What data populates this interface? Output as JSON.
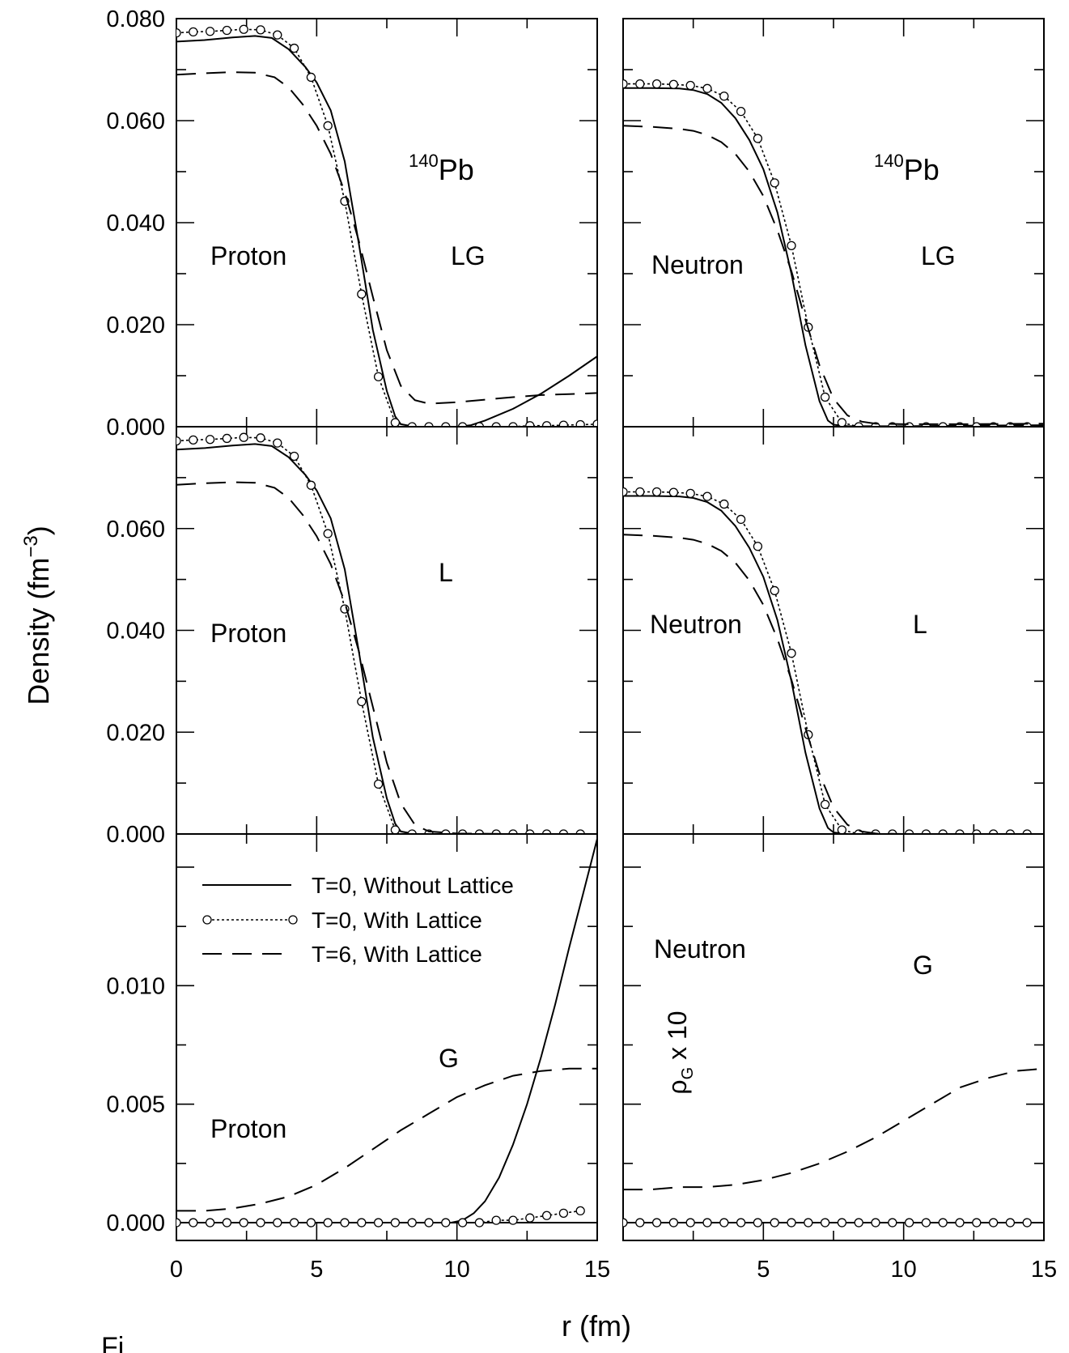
{
  "figure": {
    "xlabel": "r (fm)",
    "ylabel": "Density (fm",
    "ylabel_exp": "−3",
    "ylabel_close": ")",
    "caption_fragment": "Fi"
  },
  "legend": [
    {
      "label": "T=0, Without Lattice",
      "style": "solid"
    },
    {
      "label": "T=0, With Lattice",
      "style": "dotted-circles"
    },
    {
      "label": "T=6, With Lattice",
      "style": "dashed"
    }
  ],
  "colors": {
    "ink": "#000000",
    "background": "#ffffff"
  },
  "chart_data": [
    {
      "type": "line",
      "panel": "top-left",
      "nucleus_mass": "140",
      "nucleus_symbol": "Pb",
      "species": "Proton",
      "component": "LG",
      "xlim": [
        0,
        15
      ],
      "ylim": [
        0,
        0.08
      ],
      "yticks": [
        "0.000",
        "0.020",
        "0.040",
        "0.060",
        "0.080"
      ],
      "xticks": [],
      "series": [
        {
          "style": "solid",
          "x": [
            0,
            1,
            2,
            2.8,
            3.4,
            4,
            4.6,
            5,
            5.5,
            6,
            6.5,
            7,
            7.5,
            7.8,
            8,
            8.5,
            9,
            9.5,
            10,
            10.5,
            11,
            12,
            13,
            14,
            15
          ],
          "y": [
            0.0755,
            0.0758,
            0.0763,
            0.0766,
            0.0762,
            0.074,
            0.0705,
            0.0675,
            0.062,
            0.052,
            0.036,
            0.019,
            0.007,
            0.002,
            0.0005,
            0.0,
            0.0,
            0.0,
            0.0,
            0.0003,
            0.0012,
            0.0035,
            0.0065,
            0.01,
            0.0138
          ]
        },
        {
          "style": "dotted-circles",
          "x": [
            0,
            0.6,
            1.2,
            1.8,
            2.4,
            3.0,
            3.6,
            4.2,
            4.8,
            5.4,
            6.0,
            6.6,
            7.2,
            7.8,
            8.4,
            9.0,
            9.6,
            10.2,
            10.8,
            11.4,
            12.0,
            12.6,
            13.2,
            13.8,
            14.4,
            15
          ],
          "y": [
            0.0772,
            0.0774,
            0.0775,
            0.0777,
            0.0779,
            0.0778,
            0.0768,
            0.0742,
            0.0685,
            0.059,
            0.0442,
            0.026,
            0.0098,
            0.0008,
            0.0,
            0.0,
            0.0,
            0.0,
            0.0,
            0.0,
            0.0,
            0.0002,
            0.0002,
            0.0003,
            0.0004,
            0.0005
          ]
        },
        {
          "style": "dashed",
          "x": [
            0,
            1,
            2,
            2.8,
            3.5,
            4,
            4.5,
            5,
            5.5,
            6,
            6.5,
            7,
            7.5,
            8,
            8.5,
            9,
            10,
            11,
            12,
            13,
            14,
            15
          ],
          "y": [
            0.069,
            0.0693,
            0.0695,
            0.0694,
            0.0685,
            0.0665,
            0.0632,
            0.059,
            0.0535,
            0.046,
            0.0365,
            0.0255,
            0.015,
            0.008,
            0.0052,
            0.0045,
            0.0048,
            0.0053,
            0.0058,
            0.0062,
            0.0064,
            0.0066
          ]
        }
      ]
    },
    {
      "type": "line",
      "panel": "top-right",
      "nucleus_mass": "140",
      "nucleus_symbol": "Pb",
      "species": "Neutron",
      "component": "LG",
      "xlim": [
        0,
        15
      ],
      "ylim": [
        0,
        0.08
      ],
      "yticks": [],
      "xticks": [],
      "series": [
        {
          "style": "solid",
          "x": [
            0,
            1,
            2,
            2.5,
            3,
            3.5,
            4,
            4.5,
            5,
            5.5,
            6,
            6.5,
            7,
            7.3,
            7.5,
            8,
            9,
            10,
            12,
            15
          ],
          "y": [
            0.0664,
            0.0664,
            0.0663,
            0.066,
            0.0652,
            0.0635,
            0.0605,
            0.0562,
            0.0505,
            0.042,
            0.03,
            0.016,
            0.005,
            0.0012,
            0.0004,
            0.0001,
            0.0001,
            0.0001,
            0.0002,
            0.0003
          ]
        },
        {
          "style": "dotted-circles",
          "x": [
            0,
            0.6,
            1.2,
            1.8,
            2.4,
            3.0,
            3.6,
            4.2,
            4.8,
            5.4,
            6.0,
            6.6,
            7.2,
            7.8,
            8.4,
            9.0,
            9.6,
            10.2,
            10.8,
            11.4,
            12.0,
            12.6,
            13.2,
            13.8,
            14.4
          ],
          "y": [
            0.0672,
            0.0672,
            0.0672,
            0.0671,
            0.0669,
            0.0663,
            0.0648,
            0.0618,
            0.0565,
            0.0478,
            0.0355,
            0.0195,
            0.0058,
            0.0008,
            0.0,
            0.0,
            0.0,
            0.0,
            0.0,
            0.0,
            0.0,
            0.0,
            0.0,
            0.0,
            0.0
          ]
        },
        {
          "style": "dashed",
          "x": [
            0,
            1,
            2,
            2.5,
            3,
            3.5,
            4,
            4.5,
            5,
            5.5,
            6,
            6.5,
            7,
            7.5,
            8,
            8.5,
            9,
            10,
            12,
            15
          ],
          "y": [
            0.059,
            0.0588,
            0.0584,
            0.058,
            0.0572,
            0.0558,
            0.0535,
            0.05,
            0.0452,
            0.0385,
            0.0305,
            0.021,
            0.012,
            0.0055,
            0.0022,
            0.001,
            0.0006,
            0.0005,
            0.0005,
            0.0006
          ]
        }
      ]
    },
    {
      "type": "line",
      "panel": "middle-left",
      "species": "Proton",
      "component": "L",
      "xlim": [
        0,
        15
      ],
      "ylim": [
        0,
        0.08
      ],
      "yticks": [
        "0.000",
        "0.020",
        "0.040",
        "0.060"
      ],
      "xticks": [],
      "series": [
        {
          "style": "solid",
          "x": [
            0,
            1,
            2,
            2.8,
            3.4,
            4,
            4.6,
            5,
            5.5,
            6,
            6.5,
            7,
            7.5,
            7.8,
            8,
            8.5,
            9,
            10,
            12,
            15
          ],
          "y": [
            0.0755,
            0.0758,
            0.0763,
            0.0766,
            0.0762,
            0.074,
            0.0705,
            0.0675,
            0.062,
            0.052,
            0.036,
            0.019,
            0.007,
            0.002,
            0.0005,
            0.0,
            0.0,
            0.0,
            0.0,
            0.0
          ]
        },
        {
          "style": "dotted-circles",
          "x": [
            0,
            0.6,
            1.2,
            1.8,
            2.4,
            3.0,
            3.6,
            4.2,
            4.8,
            5.4,
            6.0,
            6.6,
            7.2,
            7.8,
            8.4,
            9.0,
            9.6,
            10.2,
            10.8,
            11.4,
            12.0,
            12.6,
            13.2,
            13.8,
            14.4
          ],
          "y": [
            0.0772,
            0.0774,
            0.0775,
            0.0777,
            0.0779,
            0.0778,
            0.0768,
            0.0742,
            0.0685,
            0.059,
            0.0442,
            0.026,
            0.0098,
            0.0008,
            0.0,
            0.0,
            0.0,
            0.0,
            0.0,
            0.0,
            0.0,
            0.0,
            0.0,
            0.0,
            0.0
          ]
        },
        {
          "style": "dashed",
          "x": [
            0,
            1,
            2,
            2.8,
            3.5,
            4,
            4.5,
            5,
            5.5,
            6,
            6.5,
            7,
            7.5,
            8,
            8.5,
            9,
            10,
            12,
            15
          ],
          "y": [
            0.0686,
            0.0689,
            0.0691,
            0.069,
            0.068,
            0.066,
            0.0627,
            0.0585,
            0.053,
            0.0455,
            0.036,
            0.025,
            0.014,
            0.006,
            0.0018,
            0.0005,
            0.0001,
            0.0,
            0.0
          ]
        }
      ]
    },
    {
      "type": "line",
      "panel": "middle-right",
      "species": "Neutron",
      "component": "L",
      "xlim": [
        0,
        15
      ],
      "ylim": [
        0,
        0.08
      ],
      "yticks": [],
      "xticks": [],
      "series": [
        {
          "style": "solid",
          "x": [
            0,
            1,
            2,
            2.5,
            3,
            3.5,
            4,
            4.5,
            5,
            5.5,
            6,
            6.5,
            7,
            7.3,
            7.5,
            8,
            9,
            15
          ],
          "y": [
            0.0664,
            0.0664,
            0.0663,
            0.066,
            0.0652,
            0.0635,
            0.0605,
            0.0562,
            0.0505,
            0.042,
            0.03,
            0.016,
            0.005,
            0.0012,
            0.0003,
            0.0,
            0.0,
            0.0
          ]
        },
        {
          "style": "dotted-circles",
          "x": [
            0,
            0.6,
            1.2,
            1.8,
            2.4,
            3.0,
            3.6,
            4.2,
            4.8,
            5.4,
            6.0,
            6.6,
            7.2,
            7.8,
            8.4,
            9.0,
            9.6,
            10.2,
            10.8,
            11.4,
            12.0,
            12.6,
            13.2,
            13.8,
            14.4
          ],
          "y": [
            0.0672,
            0.0672,
            0.0672,
            0.0671,
            0.0669,
            0.0663,
            0.0648,
            0.0618,
            0.0565,
            0.0478,
            0.0355,
            0.0195,
            0.0058,
            0.0008,
            0.0,
            0.0,
            0.0,
            0.0,
            0.0,
            0.0,
            0.0,
            0.0,
            0.0,
            0.0,
            0.0
          ]
        },
        {
          "style": "dashed",
          "x": [
            0,
            1,
            2,
            2.5,
            3,
            3.5,
            4,
            4.5,
            5,
            5.5,
            6,
            6.5,
            7,
            7.5,
            8,
            8.5,
            9,
            10,
            15
          ],
          "y": [
            0.0588,
            0.0586,
            0.0582,
            0.0578,
            0.057,
            0.0556,
            0.0533,
            0.0498,
            0.045,
            0.0383,
            0.0303,
            0.0208,
            0.0118,
            0.0052,
            0.0018,
            0.0005,
            0.0001,
            0.0,
            0.0
          ]
        }
      ]
    },
    {
      "type": "line",
      "panel": "bottom-left",
      "species": "Proton",
      "component": "G",
      "xlim": [
        0,
        15
      ],
      "ylim": [
        -0.00075,
        0.0164
      ],
      "yticks": [
        "0.000",
        "0.005",
        "0.010"
      ],
      "xticks": [
        "0",
        "5",
        "10",
        "15"
      ],
      "series": [
        {
          "style": "solid",
          "x": [
            0,
            2,
            4,
            6,
            8,
            9,
            9.8,
            10.2,
            10.6,
            11,
            11.5,
            12,
            12.5,
            13,
            13.5,
            14,
            14.5,
            15
          ],
          "y": [
            0.0,
            0.0,
            0.0,
            0.0,
            0.0,
            0.0,
            0.0,
            0.0001,
            0.0004,
            0.0009,
            0.0019,
            0.0033,
            0.005,
            0.007,
            0.0092,
            0.0116,
            0.0139,
            0.0162
          ]
        },
        {
          "style": "dotted-circles",
          "x": [
            0,
            0.6,
            1.2,
            1.8,
            2.4,
            3.0,
            3.6,
            4.2,
            4.8,
            5.4,
            6.0,
            6.6,
            7.2,
            7.8,
            8.4,
            9.0,
            9.6,
            10.2,
            10.8,
            11.4,
            12.0,
            12.6,
            13.2,
            13.8,
            14.4
          ],
          "y": [
            0.0,
            0.0,
            0.0,
            0.0,
            0.0,
            0.0,
            0.0,
            0.0,
            0.0,
            0.0,
            0.0,
            0.0,
            0.0,
            0.0,
            0.0,
            0.0,
            0.0,
            0.0,
            0.0,
            0.0001,
            0.0001,
            0.0002,
            0.0003,
            0.0004,
            0.0005
          ]
        },
        {
          "style": "dashed",
          "x": [
            0,
            1,
            2,
            3,
            4,
            5,
            6,
            7,
            8,
            9,
            10,
            11,
            12,
            13,
            14,
            15
          ],
          "y": [
            0.0005,
            0.0005,
            0.0006,
            0.0008,
            0.0011,
            0.0016,
            0.0023,
            0.0031,
            0.0039,
            0.0046,
            0.0053,
            0.0058,
            0.0062,
            0.0064,
            0.0065,
            0.0065
          ]
        }
      ]
    },
    {
      "type": "line",
      "panel": "bottom-right",
      "species": "Neutron",
      "component": "G",
      "scale_note": "x 10",
      "xlim": [
        0,
        15
      ],
      "ylim": [
        -0.00075,
        0.0164
      ],
      "yticks": [],
      "xticks": [
        "5",
        "10",
        "15"
      ],
      "series": [
        {
          "style": "solid",
          "x": [
            0,
            15
          ],
          "y": [
            0.0,
            0.0
          ]
        },
        {
          "style": "dotted-circles",
          "x": [
            0,
            0.6,
            1.2,
            1.8,
            2.4,
            3.0,
            3.6,
            4.2,
            4.8,
            5.4,
            6.0,
            6.6,
            7.2,
            7.8,
            8.4,
            9.0,
            9.6,
            10.2,
            10.8,
            11.4,
            12.0,
            12.6,
            13.2,
            13.8,
            14.4
          ],
          "y": [
            0.0,
            0.0,
            0.0,
            0.0,
            0.0,
            0.0,
            0.0,
            0.0,
            0.0,
            0.0,
            0.0,
            0.0,
            0.0,
            0.0,
            0.0,
            0.0,
            0.0,
            0.0,
            0.0,
            0.0,
            0.0,
            0.0,
            0.0,
            0.0,
            0.0
          ]
        },
        {
          "style": "dashed",
          "x": [
            0,
            1,
            2,
            3,
            4,
            5,
            6,
            7,
            8,
            9,
            10,
            11,
            12,
            13,
            14,
            15
          ],
          "y": [
            0.0014,
            0.0014,
            0.0015,
            0.0015,
            0.0016,
            0.0018,
            0.0021,
            0.0025,
            0.003,
            0.0036,
            0.0043,
            0.005,
            0.0057,
            0.0061,
            0.0064,
            0.0065
          ]
        }
      ]
    }
  ]
}
